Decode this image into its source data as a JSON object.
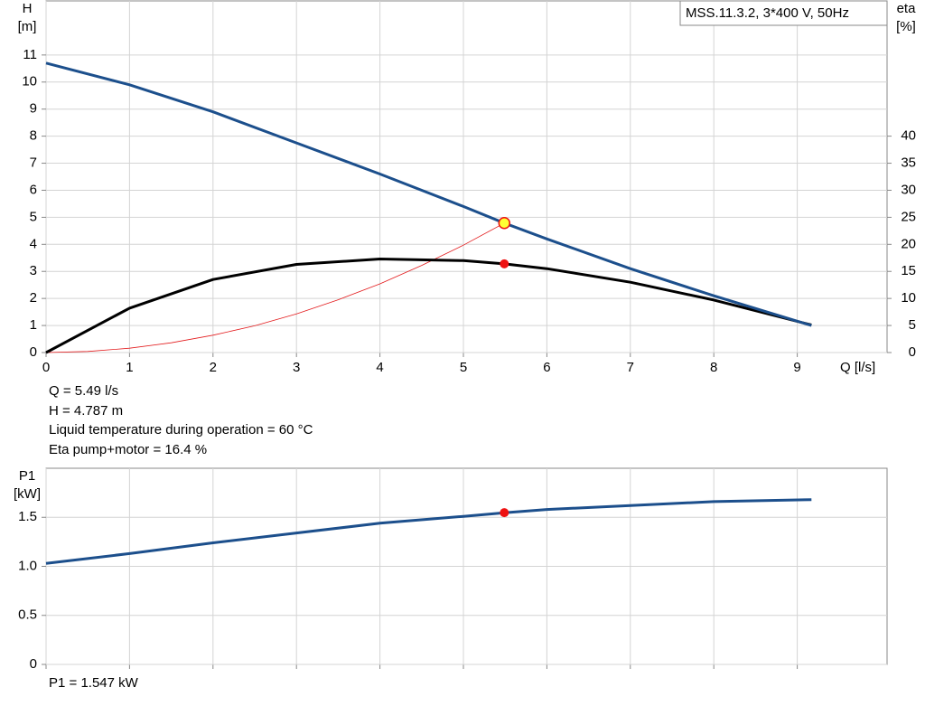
{
  "chart_data": [
    {
      "type": "line",
      "title": "MSS.11.3.2, 3*400 V, 50Hz",
      "ylabel": [
        "H",
        "[m]"
      ],
      "y2label": [
        "eta",
        "[%]"
      ],
      "xlabel": "Q [l/s]",
      "xlim": [
        0,
        10
      ],
      "xticks": [
        0,
        1,
        2,
        3,
        4,
        5,
        6,
        7,
        8,
        9
      ],
      "ylim": [
        0,
        13
      ],
      "yticks": [
        0,
        1,
        2,
        3,
        4,
        5,
        6,
        7,
        8,
        9,
        10,
        11
      ],
      "y2lim": [
        0,
        65
      ],
      "y2ticks": [
        0,
        5,
        10,
        15,
        20,
        25,
        30,
        35,
        40
      ],
      "grid": true,
      "series": [
        {
          "color": "#e31a1c",
          "width": 0.8,
          "x": [
            0,
            0.5,
            1,
            1.5,
            2,
            2.5,
            3,
            3.5,
            4,
            4.5,
            5,
            5.49
          ],
          "values": [
            0,
            0.04,
            0.16,
            0.36,
            0.64,
            0.99,
            1.43,
            1.95,
            2.54,
            3.22,
            3.97,
            4.787
          ]
        },
        {
          "color": "#000000",
          "width": 3,
          "axis": "y2",
          "x": [
            0,
            1,
            2,
            3,
            4,
            5,
            5.49,
            6,
            7,
            8,
            9.17
          ],
          "values": [
            0,
            8.2,
            13.5,
            16.3,
            17.3,
            17,
            16.4,
            15.5,
            13,
            9.7,
            5.1
          ]
        },
        {
          "color": "#1c4f8c",
          "width": 3,
          "x": [
            0,
            1,
            2,
            3,
            4,
            5,
            5.49,
            6,
            7,
            8,
            9.17
          ],
          "values": [
            10.7,
            9.9,
            8.9,
            7.75,
            6.6,
            5.4,
            4.787,
            4.2,
            3.1,
            2.1,
            1.0
          ]
        }
      ],
      "markers": [
        {
          "x": 5.49,
          "y": 16.4,
          "axis": "y2",
          "color": "#ee1111"
        },
        {
          "x": 5.49,
          "y": 4.787,
          "color": "#ffff33",
          "edge": "#ee1111"
        }
      ],
      "annotations": [
        "Q = 5.49 l/s",
        "H = 4.787 m",
        "Liquid temperature during operation = 60 °C",
        "Eta pump+motor = 16.4 %"
      ]
    },
    {
      "type": "line",
      "ylabel": [
        "P1",
        "[kW]"
      ],
      "xlim": [
        0,
        10
      ],
      "xticks": [
        0,
        1,
        2,
        3,
        4,
        5,
        6,
        7,
        8,
        9
      ],
      "ylim": [
        0,
        2
      ],
      "yticks": [
        0,
        0.5,
        {
          "value": 1,
          "label": "1.0"
        },
        1.5
      ],
      "grid": true,
      "series": [
        {
          "color": "#1c4f8c",
          "width": 3,
          "x": [
            0,
            1,
            2,
            3,
            4,
            5,
            5.49,
            6,
            7,
            8,
            9.17
          ],
          "values": [
            1.03,
            1.13,
            1.24,
            1.34,
            1.44,
            1.51,
            1.547,
            1.58,
            1.62,
            1.66,
            1.68
          ]
        }
      ],
      "markers": [
        {
          "x": 5.49,
          "y": 1.547,
          "color": "#ee1111"
        }
      ],
      "annotations": [
        "P1 = 1.547 kW"
      ]
    }
  ]
}
